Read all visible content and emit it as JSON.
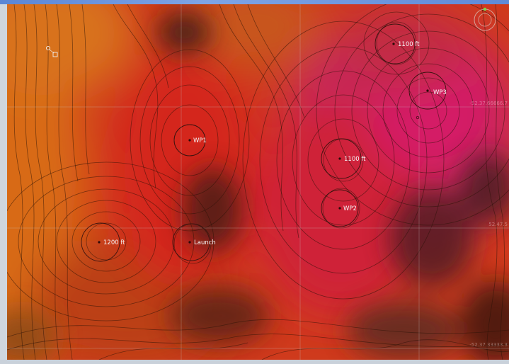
{
  "map": {
    "waypoints": [
      {
        "label": "WP1"
      },
      {
        "label": "WP2"
      },
      {
        "label": "WP3"
      },
      {
        "label": "Launch"
      }
    ],
    "altitude_labels": [
      {
        "label": "1100 ft"
      },
      {
        "label": "1100 ft"
      },
      {
        "label": "1200 ft"
      }
    ],
    "grid_labels": {
      "right_upper": "-52.37.66666.7",
      "right_middle": "52.47.5",
      "right_lower": "-52.37.33333.3"
    },
    "colors": {
      "low_terrain": "#d86a14",
      "mid_terrain": "#cc2a1c",
      "high_terrain": "#cf1c5a",
      "shadow": "#3a1a12"
    },
    "icons": [
      "compass-icon",
      "home-marker-icon"
    ]
  }
}
